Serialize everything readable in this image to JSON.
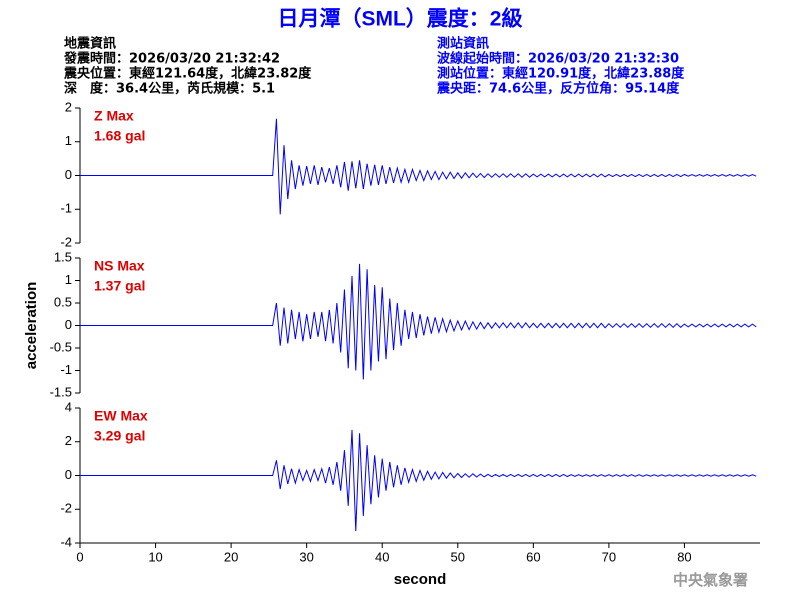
{
  "header": {
    "title": "日月潭（SML）震度：2級",
    "left": [
      "地震資訊",
      "發震時間：2026/03/20 21:32:42",
      "震央位置：東經121.64度，北緯23.82度",
      "深　度：36.4公里，芮氏規模：5.1"
    ],
    "right": [
      "測站資訊",
      "波線起始時間：2026/03/20 21:32:30",
      "測站位置：東經120.91度，北緯23.88度",
      "震央距：74.6公里，反方位角：95.14度"
    ],
    "credit": "中央氣象署"
  },
  "chart_data": [
    {
      "type": "line",
      "annotation": [
        "Z Max",
        "1.68 gal"
      ],
      "xlim": [
        0,
        90
      ],
      "ylim": [
        -2,
        2
      ],
      "yticks": [
        -2,
        -1,
        0,
        1,
        2
      ],
      "color": "#0000ff",
      "x": [
        0,
        25.5,
        26,
        26.5,
        27,
        27.5,
        28,
        28.5,
        29,
        29.5,
        30,
        30.5,
        31,
        31.5,
        32,
        32.5,
        33,
        33.5,
        34,
        34.5,
        35,
        35.5,
        36,
        36.5,
        37,
        37.5,
        38,
        38.5,
        39,
        39.5,
        40,
        40.5,
        41,
        41.5,
        42,
        42.5,
        43,
        43.5,
        44,
        44.5,
        45,
        45.5,
        46,
        46.5,
        47,
        47.5,
        48,
        48.5,
        49,
        49.5,
        50,
        50.5,
        51,
        51.5,
        52,
        52.5,
        53,
        53.5,
        54,
        54.5,
        55,
        55.5,
        56,
        56.5,
        57,
        57.5,
        58,
        58.5,
        59,
        59.5,
        60,
        60.5,
        61,
        61.5,
        62,
        62.5,
        63,
        63.5,
        64,
        64.5,
        65,
        65.5,
        66,
        66.5,
        67,
        67.5,
        68,
        68.5,
        69,
        69.5,
        70,
        70.5,
        71,
        71.5,
        72,
        72.5,
        73,
        73.5,
        74,
        74.5,
        75,
        75.5,
        76,
        76.5,
        77,
        77.5,
        78,
        78.5,
        79,
        79.5,
        80,
        80.5,
        81,
        81.5,
        82,
        82.5,
        83,
        83.5,
        84,
        84.5,
        85,
        85.5,
        86,
        86.5,
        87,
        87.5,
        88,
        88.5,
        89,
        89.5
      ],
      "values": [
        0,
        0,
        1.68,
        -1.15,
        0.9,
        -0.7,
        0.45,
        -0.4,
        0.3,
        -0.3,
        0.28,
        -0.25,
        0.3,
        -0.28,
        0.25,
        -0.2,
        0.22,
        -0.25,
        0.3,
        -0.35,
        0.4,
        -0.45,
        0.42,
        -0.38,
        0.45,
        -0.4,
        0.35,
        -0.3,
        0.32,
        -0.28,
        0.3,
        -0.25,
        0.25,
        -0.22,
        0.22,
        -0.2,
        0.18,
        -0.2,
        0.18,
        -0.15,
        0.15,
        -0.15,
        0.14,
        -0.12,
        0.12,
        -0.12,
        0.1,
        -0.1,
        0.1,
        -0.09,
        0.08,
        -0.08,
        0.08,
        -0.07,
        0.07,
        -0.06,
        0.06,
        -0.06,
        0.05,
        -0.05,
        0.05,
        -0.05,
        0.05,
        -0.05,
        0.05,
        -0.05,
        0.05,
        -0.05,
        0.05,
        -0.05,
        0.04,
        -0.04,
        0.04,
        -0.04,
        0.04,
        -0.04,
        0.04,
        -0.04,
        0.04,
        -0.04,
        0.04,
        -0.04,
        0.04,
        -0.04,
        0.04,
        -0.04,
        0.04,
        -0.04,
        0.04,
        -0.04,
        0.03,
        -0.03,
        0.03,
        -0.03,
        0.03,
        -0.03,
        0.03,
        -0.03,
        0.03,
        -0.03,
        0.03,
        -0.03,
        0.03,
        -0.03,
        0.03,
        -0.03,
        0.03,
        -0.03,
        0.03,
        -0.03,
        0.03,
        -0.02,
        0.03,
        -0.02,
        0.03,
        -0.02,
        0.03,
        -0.02,
        0.03,
        -0.02,
        0.03,
        -0.02,
        0.03,
        -0.02,
        0.03,
        -0.02,
        0.03,
        -0.02,
        0.03,
        -0.02
      ]
    },
    {
      "type": "line",
      "annotation": [
        "NS Max",
        "1.37 gal"
      ],
      "ylabel": "acceleration",
      "xlim": [
        0,
        90
      ],
      "ylim": [
        -1.5,
        1.5
      ],
      "yticks": [
        -1.5,
        -1,
        -0.5,
        0,
        0.5,
        1,
        1.5
      ],
      "color": "#0000ff",
      "x": [
        0,
        25.5,
        26,
        26.5,
        27,
        27.5,
        28,
        28.5,
        29,
        29.5,
        30,
        30.5,
        31,
        31.5,
        32,
        32.5,
        33,
        33.5,
        34,
        34.5,
        35,
        35.5,
        36,
        36.5,
        37,
        37.5,
        38,
        38.5,
        39,
        39.5,
        40,
        40.5,
        41,
        41.5,
        42,
        42.5,
        43,
        43.5,
        44,
        44.5,
        45,
        45.5,
        46,
        46.5,
        47,
        47.5,
        48,
        48.5,
        49,
        49.5,
        50,
        50.5,
        51,
        51.5,
        52,
        52.5,
        53,
        53.5,
        54,
        54.5,
        55,
        55.5,
        56,
        56.5,
        57,
        57.5,
        58,
        58.5,
        59,
        59.5,
        60,
        60.5,
        61,
        61.5,
        62,
        62.5,
        63,
        63.5,
        64,
        64.5,
        65,
        65.5,
        66,
        66.5,
        67,
        67.5,
        68,
        68.5,
        69,
        69.5,
        70,
        70.5,
        71,
        71.5,
        72,
        72.5,
        73,
        73.5,
        74,
        74.5,
        75,
        75.5,
        76,
        76.5,
        77,
        77.5,
        78,
        78.5,
        79,
        79.5,
        80,
        80.5,
        81,
        81.5,
        82,
        82.5,
        83,
        83.5,
        84,
        84.5,
        85,
        85.5,
        86,
        86.5,
        87,
        87.5,
        88,
        88.5,
        89,
        89.5
      ],
      "values": [
        0,
        0,
        0.5,
        -0.45,
        0.4,
        -0.4,
        0.35,
        -0.3,
        0.3,
        -0.35,
        0.25,
        -0.3,
        0.3,
        -0.25,
        0.3,
        -0.35,
        0.35,
        -0.4,
        0.5,
        -0.6,
        0.8,
        -0.95,
        1.1,
        -1.0,
        1.37,
        -1.2,
        1.25,
        -1.0,
        0.9,
        -0.8,
        0.85,
        -0.75,
        0.6,
        -0.55,
        0.5,
        -0.45,
        0.35,
        -0.3,
        0.3,
        -0.28,
        0.25,
        -0.22,
        0.2,
        -0.18,
        0.18,
        -0.15,
        0.15,
        -0.14,
        0.12,
        -0.12,
        0.1,
        -0.1,
        0.1,
        -0.09,
        0.08,
        -0.08,
        0.07,
        -0.07,
        0.06,
        -0.06,
        0.06,
        -0.05,
        0.06,
        -0.05,
        0.06,
        -0.05,
        0.06,
        -0.05,
        0.06,
        -0.05,
        0.05,
        -0.05,
        0.05,
        -0.05,
        0.05,
        -0.05,
        0.05,
        -0.05,
        0.05,
        -0.05,
        0.05,
        -0.05,
        0.05,
        -0.05,
        0.05,
        -0.05,
        0.05,
        -0.05,
        0.05,
        -0.05,
        0.04,
        -0.04,
        0.04,
        -0.04,
        0.04,
        -0.04,
        0.04,
        -0.04,
        0.04,
        -0.04,
        0.04,
        -0.04,
        0.04,
        -0.04,
        0.04,
        -0.04,
        0.04,
        -0.04,
        0.04,
        -0.04,
        0.03,
        -0.03,
        0.03,
        -0.03,
        0.03,
        -0.03,
        0.03,
        -0.03,
        0.03,
        -0.03,
        0.03,
        -0.03,
        0.03,
        -0.03,
        0.03,
        -0.03,
        0.03,
        -0.03,
        0.03,
        -0.03
      ]
    },
    {
      "type": "line",
      "annotation": [
        "EW Max",
        "3.29 gal"
      ],
      "xlabel": "second",
      "xlim": [
        0,
        90
      ],
      "xticks": [
        0,
        10,
        20,
        30,
        40,
        50,
        60,
        70,
        80
      ],
      "ylim": [
        -4,
        4
      ],
      "yticks": [
        -4,
        -2,
        0,
        2,
        4
      ],
      "color": "#0000ff",
      "x": [
        0,
        25.5,
        26,
        26.5,
        27,
        27.5,
        28,
        28.5,
        29,
        29.5,
        30,
        30.5,
        31,
        31.5,
        32,
        32.5,
        33,
        33.5,
        34,
        34.5,
        35,
        35.5,
        36,
        36.5,
        37,
        37.5,
        38,
        38.5,
        39,
        39.5,
        40,
        40.5,
        41,
        41.5,
        42,
        42.5,
        43,
        43.5,
        44,
        44.5,
        45,
        45.5,
        46,
        46.5,
        47,
        47.5,
        48,
        48.5,
        49,
        49.5,
        50,
        50.5,
        51,
        51.5,
        52,
        52.5,
        53,
        53.5,
        54,
        54.5,
        55,
        55.5,
        56,
        56.5,
        57,
        57.5,
        58,
        58.5,
        59,
        59.5,
        60,
        60.5,
        61,
        61.5,
        62,
        62.5,
        63,
        63.5,
        64,
        64.5,
        65,
        65.5,
        66,
        66.5,
        67,
        67.5,
        68,
        68.5,
        69,
        69.5,
        70,
        70.5,
        71,
        71.5,
        72,
        72.5,
        73,
        73.5,
        74,
        74.5,
        75,
        75.5,
        76,
        76.5,
        77,
        77.5,
        78,
        78.5,
        79,
        79.5,
        80,
        80.5,
        81,
        81.5,
        82,
        82.5,
        83,
        83.5,
        84,
        84.5,
        85,
        85.5,
        86,
        86.5,
        87,
        87.5,
        88,
        88.5,
        89,
        89.5
      ],
      "values": [
        0,
        0,
        0.9,
        -0.8,
        0.6,
        -0.5,
        0.4,
        -0.45,
        0.35,
        -0.3,
        0.3,
        -0.35,
        0.35,
        -0.3,
        0.4,
        -0.45,
        0.5,
        -0.55,
        0.8,
        -0.9,
        1.5,
        -1.8,
        2.7,
        -3.29,
        2.5,
        -2.4,
        1.8,
        -1.7,
        1.2,
        -1.3,
        1.0,
        -0.9,
        0.8,
        -0.7,
        0.6,
        -0.55,
        0.45,
        -0.4,
        0.35,
        -0.35,
        0.3,
        -0.28,
        0.25,
        -0.22,
        0.2,
        -0.2,
        0.18,
        -0.16,
        0.15,
        -0.14,
        0.12,
        -0.12,
        0.1,
        -0.1,
        0.1,
        -0.09,
        0.08,
        -0.08,
        0.07,
        -0.07,
        0.06,
        -0.06,
        0.06,
        -0.06,
        0.06,
        -0.06,
        0.06,
        -0.06,
        0.06,
        -0.06,
        0.06,
        -0.06,
        0.06,
        -0.06,
        0.06,
        -0.06,
        0.06,
        -0.06,
        0.06,
        -0.06,
        0.05,
        -0.05,
        0.05,
        -0.05,
        0.05,
        -0.05,
        0.05,
        -0.05,
        0.05,
        -0.05,
        0.05,
        -0.05,
        0.05,
        -0.05,
        0.05,
        -0.05,
        0.05,
        -0.05,
        0.05,
        -0.05,
        0.04,
        -0.04,
        0.04,
        -0.04,
        0.04,
        -0.04,
        0.04,
        -0.04,
        0.04,
        -0.04,
        0.04,
        -0.04,
        0.04,
        -0.04,
        0.04,
        -0.04,
        0.04,
        -0.04,
        0.04,
        -0.04,
        0.04,
        -0.04,
        0.04,
        -0.04,
        0.04,
        -0.04,
        0.04,
        -0.04,
        0.04,
        -0.04
      ]
    }
  ]
}
